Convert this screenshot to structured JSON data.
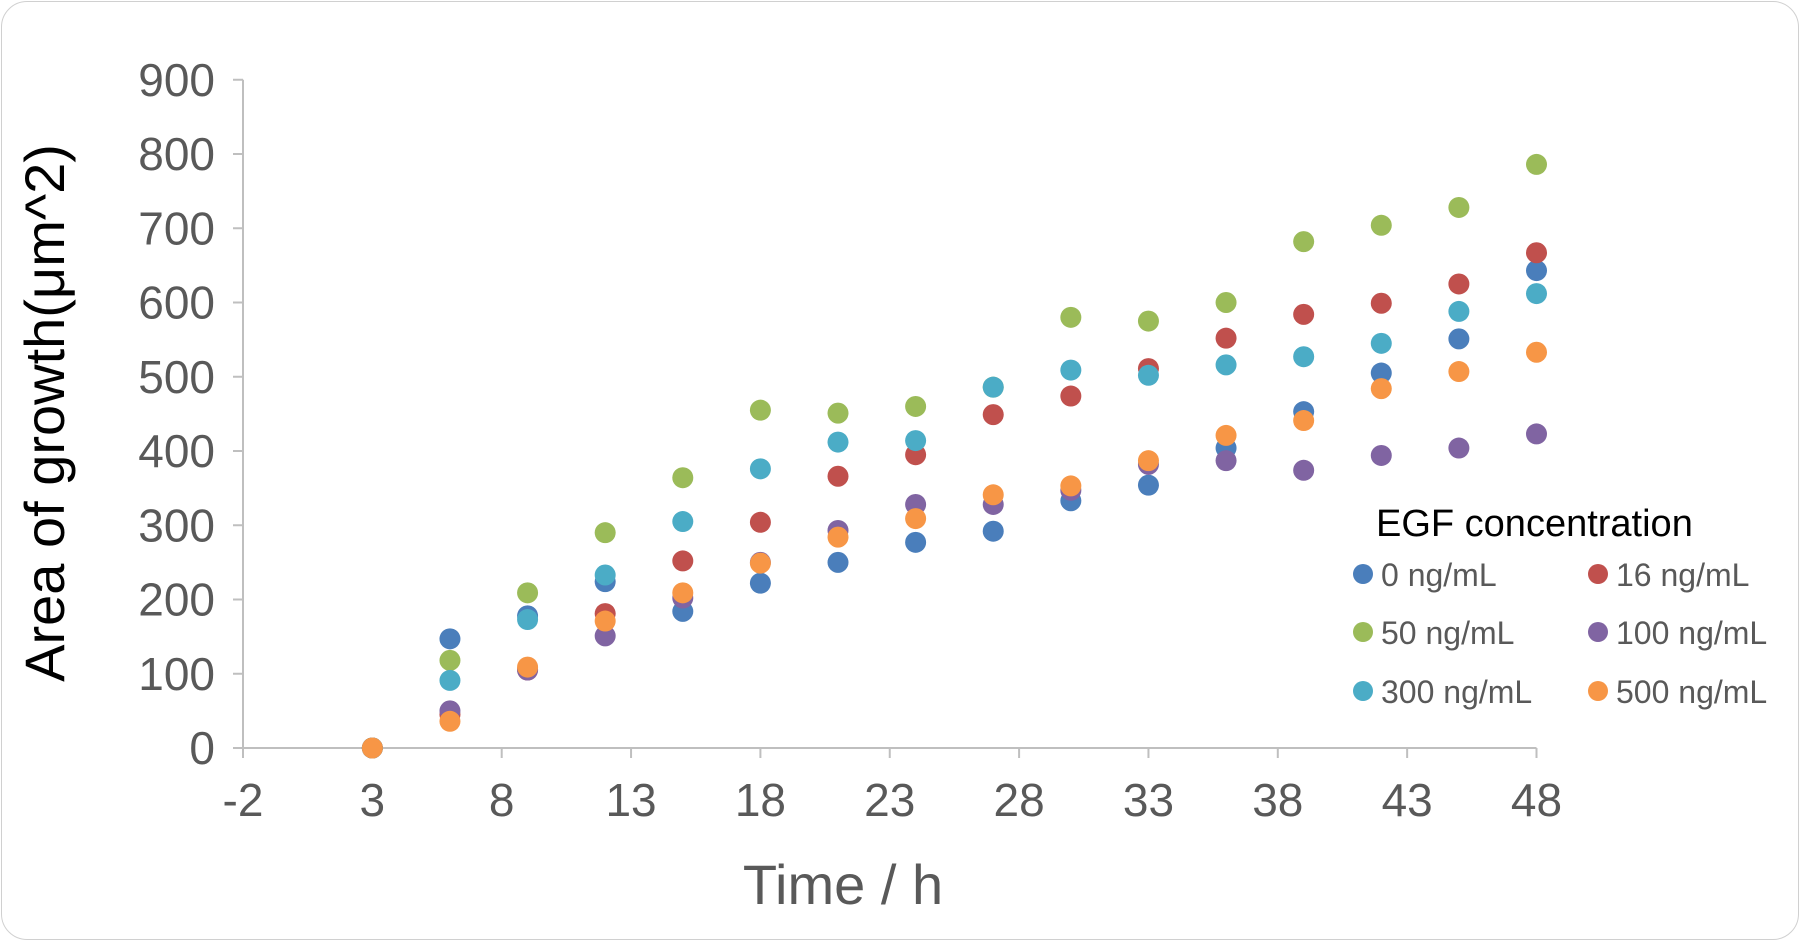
{
  "chart_data": {
    "type": "scatter",
    "title": "",
    "xlabel": "Time / h",
    "ylabel": "Area of growth(μm^2)",
    "xlim": [
      -2,
      48
    ],
    "ylim": [
      0,
      900
    ],
    "x_ticks": [
      "-2",
      "3",
      "8",
      "13",
      "18",
      "23",
      "28",
      "33",
      "38",
      "43",
      "48"
    ],
    "y_ticks": [
      "0",
      "100",
      "200",
      "300",
      "400",
      "500",
      "600",
      "700",
      "800",
      "900"
    ],
    "grid": false,
    "legend": {
      "title": "EGF concentration",
      "position": "right-inside",
      "columns": 2
    },
    "x": [
      3,
      6,
      9,
      12,
      15,
      18,
      21,
      24,
      27,
      30,
      33,
      36,
      39,
      42,
      45,
      48
    ],
    "series": [
      {
        "name": "0 ng/mL",
        "color": "#4a7ebb",
        "values": [
          0,
          147,
          178,
          224,
          184,
          222,
          250,
          277,
          292,
          333,
          354,
          404,
          453,
          505,
          551,
          643
        ]
      },
      {
        "name": "16 ng/mL",
        "color": "#c0504d",
        "values": [
          0,
          45,
          105,
          181,
          252,
          304,
          366,
          395,
          449,
          474,
          511,
          552,
          584,
          599,
          625,
          667
        ]
      },
      {
        "name": "50 ng/mL",
        "color": "#9bbb59",
        "values": [
          0,
          118,
          209,
          290,
          364,
          455,
          451,
          460,
          486,
          580,
          575,
          600,
          682,
          704,
          728,
          786
        ]
      },
      {
        "name": "100 ng/mL",
        "color": "#8064a2",
        "values": [
          0,
          50,
          105,
          151,
          202,
          250,
          293,
          328,
          328,
          347,
          382,
          387,
          374,
          394,
          404,
          423
        ]
      },
      {
        "name": "300 ng/mL",
        "color": "#4bacc6",
        "values": [
          0,
          91,
          173,
          233,
          305,
          376,
          412,
          414,
          486,
          509,
          502,
          516,
          527,
          545,
          588,
          612
        ]
      },
      {
        "name": "500 ng/mL",
        "color": "#f79646",
        "values": [
          0,
          36,
          109,
          171,
          209,
          249,
          284,
          309,
          341,
          353,
          387,
          421,
          441,
          484,
          507,
          533
        ]
      }
    ]
  }
}
